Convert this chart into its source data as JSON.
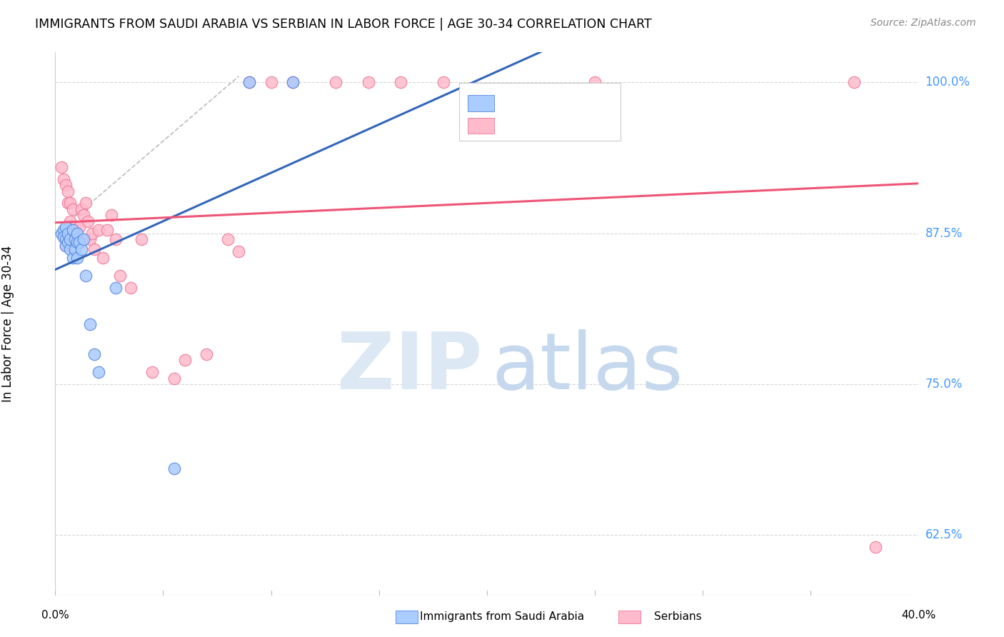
{
  "title": "IMMIGRANTS FROM SAUDI ARABIA VS SERBIAN IN LABOR FORCE | AGE 30-34 CORRELATION CHART",
  "source": "Source: ZipAtlas.com",
  "ylabel": "In Labor Force | Age 30-34",
  "xmin": 0.0,
  "xmax": 0.4,
  "ymin": 0.575,
  "ymax": 1.025,
  "yticks": [
    1.0,
    0.875,
    0.75,
    0.625
  ],
  "ytick_labels": [
    "100.0%",
    "87.5%",
    "75.0%",
    "62.5%"
  ],
  "ytick_color": "#4499ff",
  "title_fontsize": 12.5,
  "blue_scatter_x": [
    0.003,
    0.004,
    0.004,
    0.005,
    0.005,
    0.005,
    0.006,
    0.006,
    0.007,
    0.007,
    0.008,
    0.008,
    0.009,
    0.009,
    0.01,
    0.01,
    0.01,
    0.011,
    0.012,
    0.013,
    0.014,
    0.016,
    0.018,
    0.02,
    0.028,
    0.055,
    0.09,
    0.11
  ],
  "blue_scatter_y": [
    0.875,
    0.878,
    0.872,
    0.87,
    0.865,
    0.88,
    0.868,
    0.875,
    0.862,
    0.87,
    0.855,
    0.878,
    0.862,
    0.87,
    0.855,
    0.868,
    0.875,
    0.868,
    0.862,
    0.87,
    0.84,
    0.8,
    0.775,
    0.76,
    0.83,
    0.68,
    1.0,
    1.0
  ],
  "pink_scatter_x": [
    0.003,
    0.004,
    0.005,
    0.005,
    0.006,
    0.006,
    0.007,
    0.007,
    0.008,
    0.008,
    0.009,
    0.01,
    0.011,
    0.012,
    0.013,
    0.014,
    0.015,
    0.016,
    0.017,
    0.018,
    0.02,
    0.022,
    0.024,
    0.026,
    0.028,
    0.03,
    0.035,
    0.04,
    0.045,
    0.055,
    0.06,
    0.07,
    0.08,
    0.085,
    0.09,
    0.1,
    0.11,
    0.13,
    0.145,
    0.16,
    0.18,
    0.25,
    0.37,
    0.38
  ],
  "pink_scatter_y": [
    0.93,
    0.92,
    0.915,
    0.865,
    0.91,
    0.9,
    0.9,
    0.885,
    0.895,
    0.87,
    0.88,
    0.87,
    0.88,
    0.895,
    0.89,
    0.9,
    0.885,
    0.87,
    0.875,
    0.862,
    0.878,
    0.855,
    0.878,
    0.89,
    0.87,
    0.84,
    0.83,
    0.87,
    0.76,
    0.755,
    0.77,
    0.775,
    0.87,
    0.86,
    1.0,
    1.0,
    1.0,
    1.0,
    1.0,
    1.0,
    1.0,
    1.0,
    1.0,
    0.615
  ],
  "blue_color": "#aaccff",
  "pink_color": "#ffbbcc",
  "blue_edge_color": "#5588dd",
  "pink_edge_color": "#ee7799",
  "blue_line_color": "#3366bb",
  "pink_line_color": "#ee5577",
  "dash_line_color": "#aaaaaa",
  "background_color": "#ffffff",
  "grid_color": "#cccccc"
}
